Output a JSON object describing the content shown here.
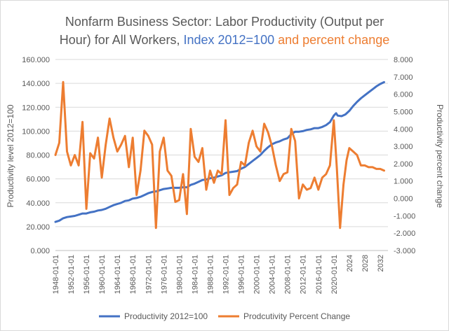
{
  "chart_data": {
    "type": "line",
    "title": {
      "line1": "Nonfarm Business Sector: Labor Productivity (Output per",
      "line2_part1": "Hour) for All Workers, ",
      "line2_part2": "Index 2012=100",
      "line2_part3": " and percent change"
    },
    "ylabel": "Productivity level 2012=100",
    "y2label": "Productivity percent change",
    "ylim": [
      0,
      160
    ],
    "y2lim": [
      -3,
      8
    ],
    "y_ticks": [
      "0.000",
      "20.000",
      "40.000",
      "60.000",
      "80.000",
      "100.000",
      "120.000",
      "140.000",
      "160.000"
    ],
    "y2_ticks": [
      "-3.000",
      "-2.000",
      "-1.000",
      "0.000",
      "1.000",
      "2.000",
      "3.000",
      "4.000",
      "5.000",
      "6.000",
      "7.000",
      "8.000"
    ],
    "x_ticks": [
      "1948-01-01",
      "1952-01-01",
      "1956-01-01",
      "1960-01-01",
      "1964-01-01",
      "1968-01-01",
      "1972-01-01",
      "1976-01-01",
      "1980-01-01",
      "1984-01-01",
      "1988-01-01",
      "1992-01-01",
      "1996-01-01",
      "2000-01-01",
      "2004-01-01",
      "2008-01-01",
      "2012-01-01",
      "2016-01-01",
      "2020-01-01",
      "2024",
      "2028",
      "2032"
    ],
    "x_tick_years": [
      1948,
      1952,
      1956,
      1960,
      1964,
      1968,
      1972,
      1976,
      1980,
      1984,
      1988,
      1992,
      1996,
      2000,
      2004,
      2008,
      2012,
      2016,
      2020,
      2024,
      2028,
      2032
    ],
    "xlim": [
      1948,
      2034
    ],
    "grid": true,
    "legend_position": "bottom",
    "series": [
      {
        "name": "Productivity 2012=100",
        "color": "#4472c4",
        "axis": "left",
        "points": [
          [
            1948,
            24
          ],
          [
            1949,
            25
          ],
          [
            1950,
            27
          ],
          [
            1951,
            28
          ],
          [
            1952,
            28.5
          ],
          [
            1953,
            29
          ],
          [
            1954,
            30
          ],
          [
            1955,
            31
          ],
          [
            1956,
            31
          ],
          [
            1957,
            32
          ],
          [
            1958,
            32.5
          ],
          [
            1959,
            33.5
          ],
          [
            1960,
            34
          ],
          [
            1961,
            35
          ],
          [
            1962,
            36.5
          ],
          [
            1963,
            38
          ],
          [
            1964,
            39
          ],
          [
            1965,
            40
          ],
          [
            1966,
            41.5
          ],
          [
            1967,
            42
          ],
          [
            1968,
            43.5
          ],
          [
            1969,
            44
          ],
          [
            1970,
            45
          ],
          [
            1971,
            46.5
          ],
          [
            1972,
            48
          ],
          [
            1973,
            49
          ],
          [
            1974,
            49.5
          ],
          [
            1975,
            50.5
          ],
          [
            1976,
            51.5
          ],
          [
            1977,
            52
          ],
          [
            1978,
            52.5
          ],
          [
            1979,
            52.5
          ],
          [
            1980,
            52.5
          ],
          [
            1981,
            53
          ],
          [
            1982,
            53
          ],
          [
            1983,
            55
          ],
          [
            1984,
            56
          ],
          [
            1985,
            57.5
          ],
          [
            1986,
            59
          ],
          [
            1987,
            59.5
          ],
          [
            1988,
            60.5
          ],
          [
            1989,
            61
          ],
          [
            1990,
            62
          ],
          [
            1991,
            63
          ],
          [
            1992,
            65
          ],
          [
            1993,
            65.5
          ],
          [
            1994,
            66
          ],
          [
            1995,
            66.5
          ],
          [
            1996,
            68.5
          ],
          [
            1997,
            70
          ],
          [
            1998,
            72.5
          ],
          [
            1999,
            75
          ],
          [
            2000,
            77.5
          ],
          [
            2001,
            80
          ],
          [
            2002,
            83.5
          ],
          [
            2003,
            86.5
          ],
          [
            2004,
            89
          ],
          [
            2005,
            90.5
          ],
          [
            2006,
            91.5
          ],
          [
            2007,
            93
          ],
          [
            2008,
            94
          ],
          [
            2009,
            97.5
          ],
          [
            2010,
            99.5
          ],
          [
            2011,
            99.5
          ],
          [
            2012,
            100
          ],
          [
            2013,
            101
          ],
          [
            2014,
            101.5
          ],
          [
            2015,
            102.5
          ],
          [
            2016,
            102.5
          ],
          [
            2017,
            103.5
          ],
          [
            2018,
            105
          ],
          [
            2019,
            107.5
          ],
          [
            2020,
            113
          ],
          [
            2020.6,
            115
          ],
          [
            2021,
            113
          ],
          [
            2022,
            112.5
          ],
          [
            2023,
            114
          ],
          [
            2024,
            117
          ],
          [
            2025,
            121
          ],
          [
            2026,
            124.5
          ],
          [
            2027,
            127.5
          ],
          [
            2028,
            130
          ],
          [
            2029,
            132.5
          ],
          [
            2030,
            135
          ],
          [
            2031,
            137.5
          ],
          [
            2032,
            139.5
          ],
          [
            2033,
            141
          ]
        ]
      },
      {
        "name": "Prodcutivity Percent Change",
        "color": "#ed7d31",
        "axis": "right",
        "points": [
          [
            1948,
            2.5
          ],
          [
            1949,
            3.2
          ],
          [
            1950,
            6.7
          ],
          [
            1951,
            2.7
          ],
          [
            1952,
            1.9
          ],
          [
            1953,
            2.5
          ],
          [
            1954,
            1.9
          ],
          [
            1955,
            4.4
          ],
          [
            1956,
            -0.6
          ],
          [
            1957,
            2.6
          ],
          [
            1958,
            2.3
          ],
          [
            1959,
            3.5
          ],
          [
            1960,
            1.2
          ],
          [
            1961,
            3.1
          ],
          [
            1962,
            4.6
          ],
          [
            1963,
            3.5
          ],
          [
            1964,
            2.7
          ],
          [
            1965,
            3.1
          ],
          [
            1966,
            3.6
          ],
          [
            1967,
            1.8
          ],
          [
            1968,
            3.5
          ],
          [
            1969,
            0.2
          ],
          [
            1970,
            1.6
          ],
          [
            1971,
            3.9
          ],
          [
            1972,
            3.6
          ],
          [
            1973,
            3.1
          ],
          [
            1974,
            -1.7
          ],
          [
            1975,
            2.7
          ],
          [
            1976,
            3.5
          ],
          [
            1977,
            1.6
          ],
          [
            1978,
            1.3
          ],
          [
            1979,
            -0.2
          ],
          [
            1980,
            -0.1
          ],
          [
            1981,
            1.4
          ],
          [
            1982,
            -0.9
          ],
          [
            1983,
            4.0
          ],
          [
            1984,
            2.4
          ],
          [
            1985,
            2.1
          ],
          [
            1986,
            2.9
          ],
          [
            1987,
            0.5
          ],
          [
            1988,
            1.6
          ],
          [
            1989,
            0.9
          ],
          [
            1990,
            1.6
          ],
          [
            1991,
            1.4
          ],
          [
            1992,
            4.5
          ],
          [
            1993,
            0.2
          ],
          [
            1994,
            0.6
          ],
          [
            1995,
            0.8
          ],
          [
            1996,
            2.1
          ],
          [
            1997,
            1.9
          ],
          [
            1998,
            3.2
          ],
          [
            1999,
            3.9
          ],
          [
            2000,
            3.0
          ],
          [
            2001,
            2.7
          ],
          [
            2002,
            4.3
          ],
          [
            2003,
            3.8
          ],
          [
            2004,
            3.0
          ],
          [
            2005,
            1.9
          ],
          [
            2006,
            1.0
          ],
          [
            2007,
            1.4
          ],
          [
            2008,
            1.5
          ],
          [
            2009,
            4.0
          ],
          [
            2010,
            3.3
          ],
          [
            2011,
            0.0
          ],
          [
            2012,
            0.8
          ],
          [
            2013,
            0.5
          ],
          [
            2014,
            0.6
          ],
          [
            2015,
            1.2
          ],
          [
            2016,
            0.5
          ],
          [
            2017,
            1.2
          ],
          [
            2018,
            1.4
          ],
          [
            2019,
            1.9
          ],
          [
            2020,
            4.5
          ],
          [
            2020.8,
            1.7
          ],
          [
            2021.6,
            -1.7
          ],
          [
            2022.5,
            0.8
          ],
          [
            2023.3,
            2.2
          ],
          [
            2024,
            2.9
          ],
          [
            2025,
            2.7
          ],
          [
            2026,
            2.5
          ],
          [
            2027,
            1.9
          ],
          [
            2028,
            1.9
          ],
          [
            2029,
            1.8
          ],
          [
            2030,
            1.8
          ],
          [
            2031,
            1.7
          ],
          [
            2032,
            1.7
          ],
          [
            2033,
            1.6
          ]
        ]
      }
    ]
  }
}
